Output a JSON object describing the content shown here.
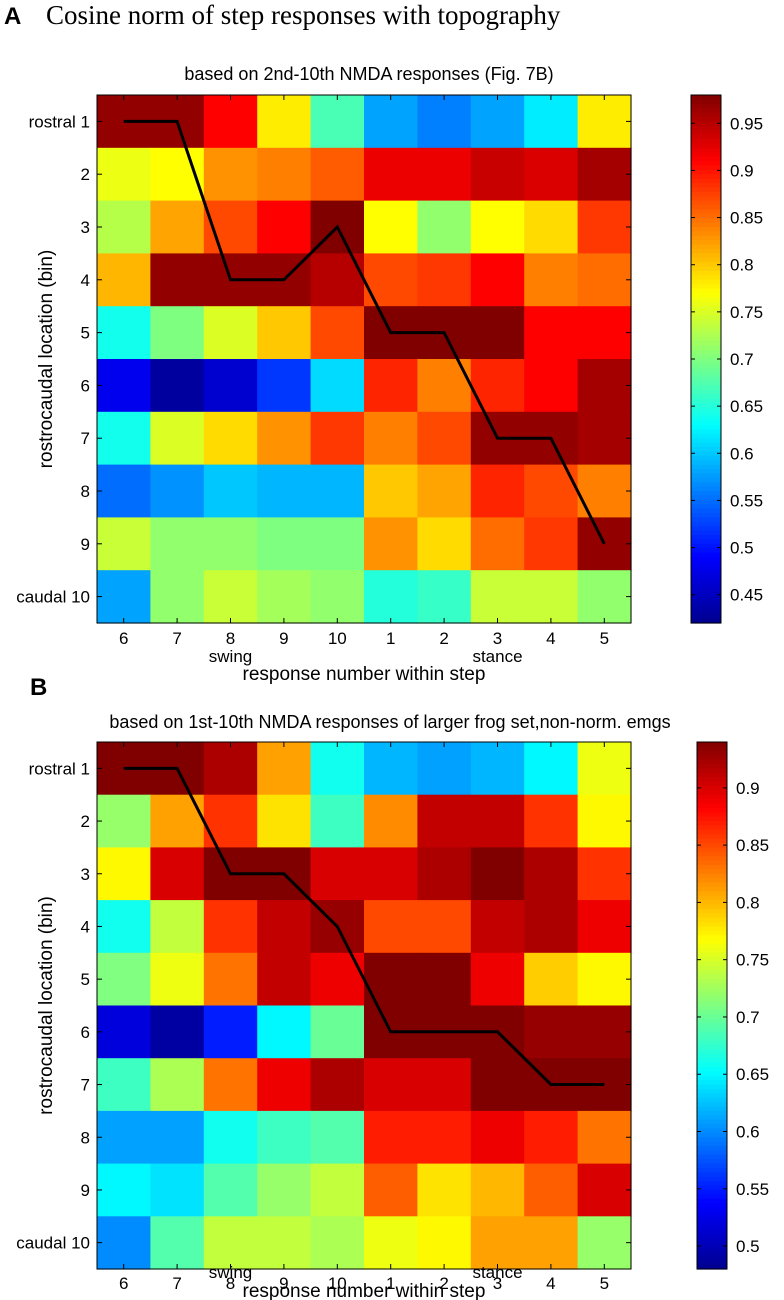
{
  "figure": {
    "panel_a_letter": "A",
    "panel_a_heading": "Cosine norm of step responses with topography",
    "panel_b_letter": "B"
  },
  "colormap": [
    "#00008f",
    "#0000ff",
    "#00ffff",
    "#ffff00",
    "#ff0000",
    "#800000"
  ],
  "line_color": "#000000",
  "chart_data": [
    {
      "type": "heatmap",
      "panel": "A",
      "title": "based on 2nd-10th NMDA responses (Fig. 7B)",
      "xlabel": "response number within step",
      "ylabel": "rostrocaudal location (bin)",
      "x_categories": [
        "6",
        "7",
        "8",
        "9",
        "10",
        "1",
        "2",
        "3",
        "4",
        "5"
      ],
      "x_phase_labels": [
        {
          "text": "swing",
          "category": "8"
        },
        {
          "text": "stance",
          "category": "3"
        }
      ],
      "y_categories": [
        "rostral 1",
        "2",
        "3",
        "4",
        "5",
        "6",
        "7",
        "8",
        "9",
        "caudal 10"
      ],
      "values": [
        [
          0.97,
          0.97,
          0.91,
          0.78,
          0.67,
          0.58,
          0.56,
          0.58,
          0.62,
          0.78
        ],
        [
          0.76,
          0.77,
          0.83,
          0.84,
          0.86,
          0.92,
          0.92,
          0.94,
          0.93,
          0.96
        ],
        [
          0.73,
          0.82,
          0.87,
          0.91,
          0.98,
          0.77,
          0.71,
          0.77,
          0.79,
          0.88
        ],
        [
          0.81,
          0.97,
          0.97,
          0.97,
          0.95,
          0.87,
          0.88,
          0.91,
          0.84,
          0.85
        ],
        [
          0.64,
          0.7,
          0.75,
          0.8,
          0.87,
          0.98,
          0.98,
          0.98,
          0.91,
          0.91
        ],
        [
          0.48,
          0.43,
          0.46,
          0.52,
          0.61,
          0.89,
          0.84,
          0.89,
          0.91,
          0.96
        ],
        [
          0.64,
          0.75,
          0.79,
          0.83,
          0.88,
          0.84,
          0.87,
          0.97,
          0.97,
          0.96
        ],
        [
          0.55,
          0.57,
          0.6,
          0.59,
          0.59,
          0.8,
          0.82,
          0.89,
          0.87,
          0.84
        ],
        [
          0.74,
          0.71,
          0.71,
          0.7,
          0.7,
          0.83,
          0.79,
          0.85,
          0.88,
          0.97
        ],
        [
          0.58,
          0.71,
          0.74,
          0.72,
          0.71,
          0.65,
          0.66,
          0.74,
          0.74,
          0.71
        ]
      ],
      "path": [
        1,
        1,
        4,
        4,
        3,
        5,
        5,
        7,
        7,
        9
      ],
      "colorbar": {
        "range": [
          0.42,
          0.98
        ],
        "ticks": [
          0.45,
          0.5,
          0.55,
          0.6,
          0.65,
          0.7,
          0.75,
          0.8,
          0.85,
          0.9,
          0.95
        ],
        "tick_labels": [
          "0.45",
          "0.5",
          "0.55",
          "0.6",
          "0.65",
          "0.7",
          "0.75",
          "0.8",
          "0.85",
          "0.9",
          "0.95"
        ]
      }
    },
    {
      "type": "heatmap",
      "panel": "B",
      "title": "based on 1st-10th NMDA responses of larger frog set,non-norm. emgs",
      "xlabel": "response number within step",
      "ylabel": "rostrocaudal location (bin)",
      "x_categories": [
        "6",
        "7",
        "8",
        "9",
        "10",
        "1",
        "2",
        "3",
        "4",
        "5"
      ],
      "x_phase_labels": [
        {
          "text": "swing",
          "category": "8"
        },
        {
          "text": "stance",
          "category": "3"
        }
      ],
      "y_categories": [
        "rostral 1",
        "2",
        "3",
        "4",
        "5",
        "6",
        "7",
        "8",
        "9",
        "caudal 10"
      ],
      "values": [
        [
          0.94,
          0.94,
          0.92,
          0.81,
          0.66,
          0.62,
          0.61,
          0.62,
          0.65,
          0.76
        ],
        [
          0.72,
          0.81,
          0.86,
          0.78,
          0.68,
          0.82,
          0.91,
          0.91,
          0.86,
          0.77
        ],
        [
          0.77,
          0.9,
          0.94,
          0.94,
          0.9,
          0.9,
          0.92,
          0.94,
          0.92,
          0.86
        ],
        [
          0.66,
          0.74,
          0.86,
          0.91,
          0.93,
          0.85,
          0.85,
          0.91,
          0.92,
          0.89
        ],
        [
          0.71,
          0.76,
          0.83,
          0.91,
          0.89,
          0.94,
          0.94,
          0.89,
          0.79,
          0.77
        ],
        [
          0.52,
          0.49,
          0.55,
          0.65,
          0.7,
          0.94,
          0.94,
          0.94,
          0.93,
          0.93
        ],
        [
          0.68,
          0.73,
          0.83,
          0.89,
          0.92,
          0.9,
          0.9,
          0.94,
          0.94,
          0.94
        ],
        [
          0.61,
          0.61,
          0.66,
          0.68,
          0.69,
          0.87,
          0.87,
          0.89,
          0.87,
          0.83
        ],
        [
          0.65,
          0.64,
          0.69,
          0.72,
          0.74,
          0.84,
          0.78,
          0.8,
          0.84,
          0.9
        ],
        [
          0.6,
          0.69,
          0.74,
          0.74,
          0.73,
          0.76,
          0.77,
          0.81,
          0.81,
          0.72
        ]
      ],
      "path": [
        1,
        1,
        3,
        3,
        4,
        6,
        6,
        6,
        7,
        7
      ],
      "colorbar": {
        "range": [
          0.48,
          0.94
        ],
        "ticks": [
          0.5,
          0.55,
          0.6,
          0.65,
          0.7,
          0.75,
          0.8,
          0.85,
          0.9
        ],
        "tick_labels": [
          "0.5",
          "0.55",
          "0.6",
          "0.65",
          "0.7",
          "0.75",
          "0.8",
          "0.85",
          "0.9"
        ]
      }
    }
  ]
}
